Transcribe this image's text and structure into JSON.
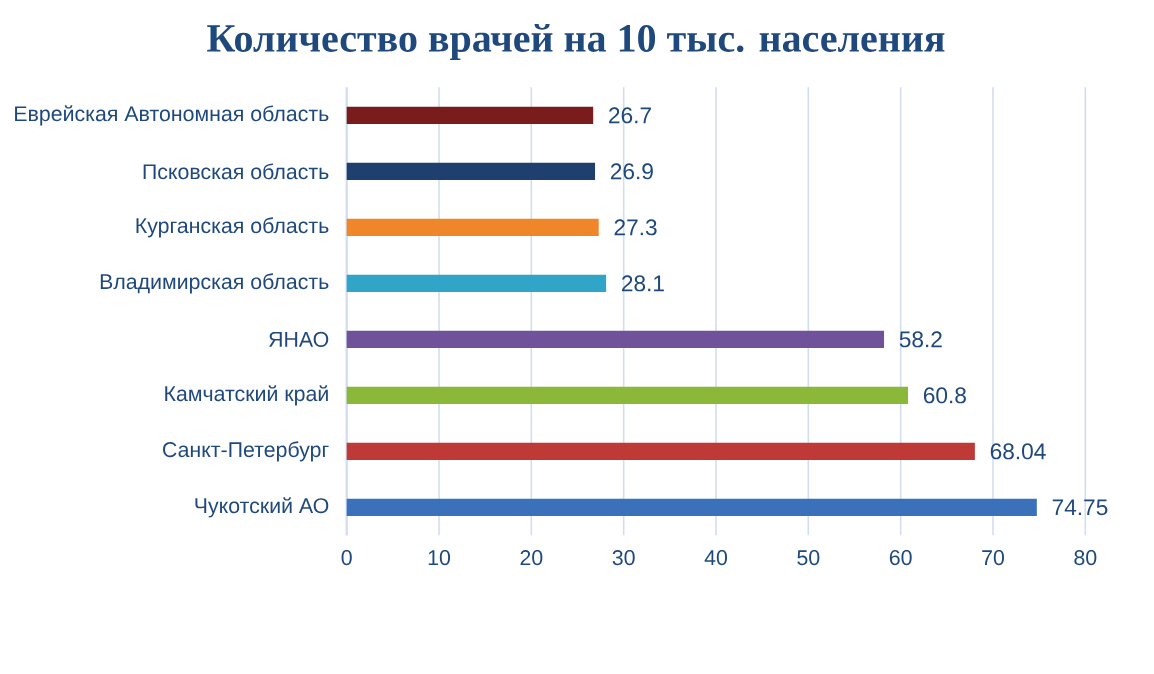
{
  "chart_data": {
    "type": "bar",
    "orientation": "horizontal",
    "title": "Количество врачей на 10 тыс. населения",
    "categories": [
      "Еврейская Автономная область",
      "Псковская область",
      "Курганская область",
      "Владимирская область",
      "ЯНАО",
      "Камчатский край",
      "Санкт-Петербург",
      "Чукотский АО"
    ],
    "values": [
      26.7,
      26.9,
      27.3,
      28.1,
      58.2,
      60.8,
      68.04,
      74.75
    ],
    "colors": [
      "#7b1c1c",
      "#1f3f6e",
      "#f0862a",
      "#31a5c8",
      "#70529a",
      "#8cb83a",
      "#bf3a36",
      "#3b71bb"
    ],
    "data_labels": true,
    "xlim": [
      0,
      80
    ],
    "xticks": [
      0,
      10,
      20,
      30,
      40,
      50,
      60,
      70,
      80
    ],
    "grid": "x"
  }
}
